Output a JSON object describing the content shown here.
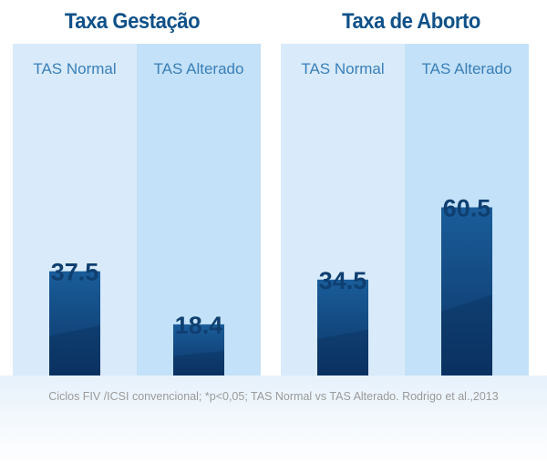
{
  "chart_data": [
    {
      "type": "bar",
      "title": "Taxa Gestação",
      "categories": [
        "TAS Normal",
        "TAS Alterado"
      ],
      "values": [
        37.5,
        18.4
      ],
      "value_labels": [
        "37.5",
        "18.4"
      ]
    },
    {
      "type": "bar",
      "title": "Taxa de Aborto",
      "categories": [
        "TAS Normal",
        "TAS Alterado"
      ],
      "values": [
        34.5,
        60.5
      ],
      "value_labels": [
        "34.5",
        "60.5"
      ]
    }
  ],
  "footnote": "Ciclos FIV /ICSI convencional; *p<0,05; TAS Normal vs TAS Alterado. Rodrigo et al.,2013",
  "colors": {
    "bar_top": "#1a5d9a",
    "bar_bottom": "#0c3566",
    "title": "#0f5189",
    "label": "#3a7fb8",
    "col_light": "#d9ebfb",
    "col_dark": "#c3e1f8"
  }
}
